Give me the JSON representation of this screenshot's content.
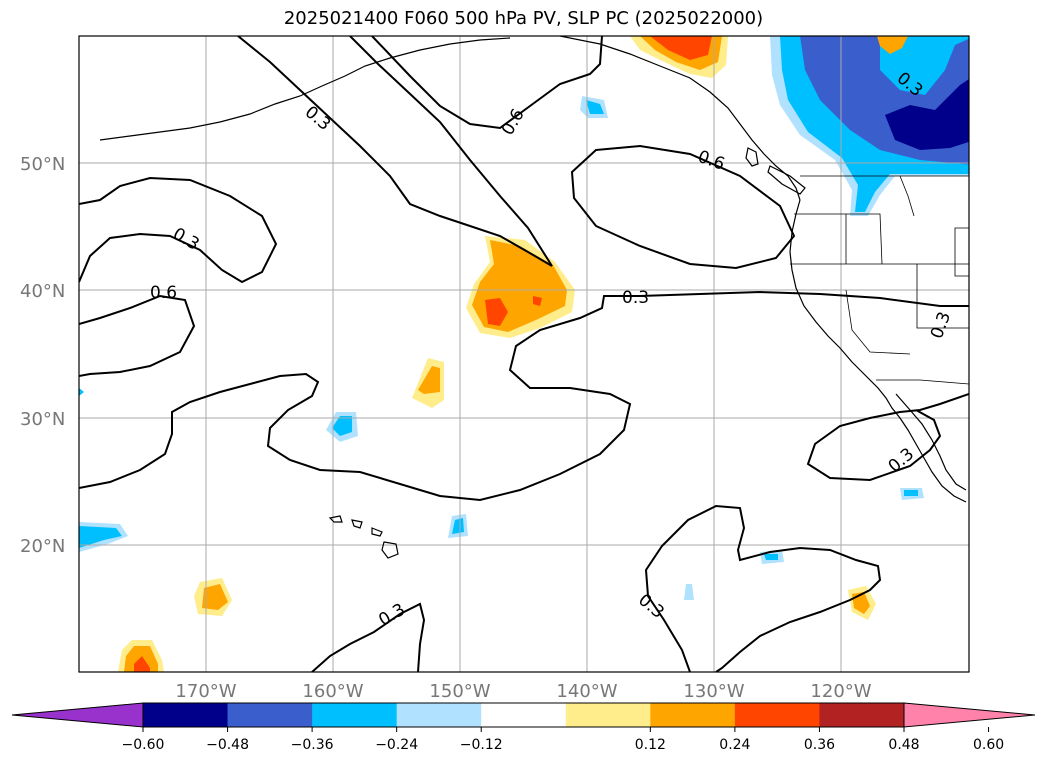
{
  "title": "2025021400 F060 500 hPa PV, SLP PC (2025022000)",
  "lat_labels": [
    "50°N",
    "40°N",
    "30°N",
    "20°N"
  ],
  "lon_labels": [
    "170°W",
    "160°W",
    "150°W",
    "140°W",
    "130°W",
    "120°W"
  ],
  "contour_labels": [
    "0.3",
    "0.6",
    "0.6",
    "0.6",
    "0.3",
    "0.3",
    "0.3",
    "0.3",
    "0.3",
    "0.3",
    "0.3"
  ],
  "colorbar": {
    "ticks": [
      "−0.60",
      "−0.48",
      "−0.36",
      "−0.24",
      "−0.12",
      "0.12",
      "0.24",
      "0.36",
      "0.48",
      "0.60"
    ],
    "colors": [
      "#9932cc",
      "#00008b",
      "#3a5fcd",
      "#00bfff",
      "#b0e2ff",
      "#ffffff",
      "#ffec8b",
      "#ffa500",
      "#ff4500",
      "#b22222",
      "#ff82ab"
    ]
  },
  "fill_colors": {
    "light_yellow": "#ffec8b",
    "orange": "#ffa500",
    "red_orange": "#ff4500",
    "light_blue": "#b0e2ff",
    "deep_sky_blue": "#00bfff",
    "royal_blue": "#3a5fcd",
    "navy": "#00008b"
  }
}
